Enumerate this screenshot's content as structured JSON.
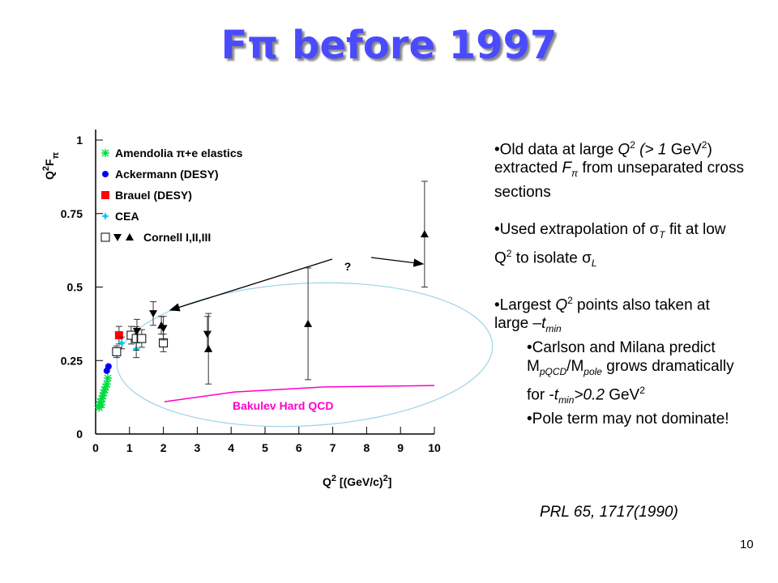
{
  "title": [
    {
      "t": "F"
    },
    {
      "t": "π"
    },
    {
      "t": " before 1997"
    }
  ],
  "chart_data": {
    "type": "scatter",
    "xlim": [
      0,
      10
    ],
    "ylim": [
      0,
      1
    ],
    "xticks": [
      0,
      1,
      2,
      3,
      4,
      5,
      6,
      7,
      8,
      9,
      10
    ],
    "yticks": [
      0,
      0.25,
      0.5,
      0.75,
      1
    ],
    "y_label": [
      {
        "t": "Q"
      },
      {
        "t": "2",
        "s": "sup"
      },
      {
        "t": "F"
      },
      {
        "t": "π",
        "s": "sub"
      }
    ],
    "x_label": [
      {
        "t": "Q"
      },
      {
        "t": "2",
        "s": "sup"
      },
      {
        "t": "  [(GeV/c)"
      },
      {
        "t": "2",
        "s": "sup"
      },
      {
        "t": "]"
      }
    ],
    "annotation": "?",
    "series": [
      {
        "name": "Amendolia π+e elastics",
        "color": "#00dd44",
        "groups": [
          {
            "marker": "asterisk",
            "x": [
              0.1,
              0.12,
              0.14,
              0.17,
              0.19,
              0.21,
              0.24,
              0.27,
              0.3,
              0.33,
              0.36
            ],
            "y": [
              0.09,
              0.1,
              0.11,
              0.1,
              0.12,
              0.13,
              0.14,
              0.15,
              0.16,
              0.17,
              0.19
            ]
          }
        ]
      },
      {
        "name": "Ackermann (DESY)",
        "color": "#0000ff",
        "groups": [
          {
            "marker": "circle",
            "x": [
              0.33,
              0.38
            ],
            "y": [
              0.215,
              0.23
            ]
          }
        ]
      },
      {
        "name": "Brauel (DESY)",
        "color": "#ff0000",
        "groups": [
          {
            "marker": "square",
            "x": [
              0.69
            ],
            "y": [
              0.336
            ],
            "errors": [
              0.03
            ]
          }
        ]
      },
      {
        "name": "CEA",
        "color": "#00ccff",
        "groups": [
          {
            "marker": "star",
            "x": [
              0.77,
              1.2
            ],
            "y": [
              0.31,
              0.29
            ],
            "errors": [
              0.02,
              0.03
            ]
          }
        ]
      },
      {
        "name": "Cornell I,II,III",
        "color": "#000000",
        "groups": [
          {
            "marker": "open-square",
            "x": [
              0.62,
              1.05,
              1.2,
              1.36,
              2.0
            ],
            "y": [
              0.28,
              0.336,
              0.325,
              0.325,
              0.31
            ],
            "errors": [
              0.02,
              0.03,
              0.04,
              0.03,
              0.03
            ]
          },
          {
            "marker": "down-triangle",
            "x": [
              1.22,
              1.7,
              2.0,
              3.3
            ],
            "y": [
              0.35,
              0.41,
              0.36,
              0.34
            ],
            "errors": [
              0.04,
              0.04,
              0.04,
              0.06
            ]
          },
          {
            "marker": "up-triangle",
            "x": [
              1.94,
              3.33,
              6.27,
              9.71
            ],
            "y": [
              0.37,
              0.29,
              0.375,
              0.68
            ],
            "errors": [
              0.03,
              0.12,
              0.19,
              0.18
            ]
          }
        ]
      }
    ],
    "curve": {
      "name": "Bakulev Hard QCD",
      "color": "#ff00cc",
      "x": [
        2.03,
        4.1,
        6.75,
        10
      ],
      "y": [
        0.11,
        0.143,
        0.16,
        0.165
      ]
    }
  },
  "bullets": [
    {
      "level": 1,
      "parts": [
        {
          "t": "•Old data at large "
        },
        {
          "t": "Q",
          "s": "i"
        },
        {
          "t": "2",
          "s": "sup"
        },
        {
          "t": " (> 1",
          "s": "i"
        },
        {
          "t": " GeV"
        },
        {
          "t": "2",
          "s": "sup"
        },
        {
          "t": ") extracted "
        },
        {
          "t": "F",
          "s": "i"
        },
        {
          "t": "π",
          "s": "sub"
        },
        {
          "t": " from unseparated cross sections"
        }
      ]
    },
    {
      "level": 1,
      "parts": [
        {
          "t": "•Used extrapolation of "
        },
        {
          "t": "σ"
        },
        {
          "t": "T",
          "s": "sub"
        },
        {
          "t": " fit at low Q"
        },
        {
          "t": "2",
          "s": "sup"
        },
        {
          "t": " to isolate "
        },
        {
          "t": "σ"
        },
        {
          "t": "L",
          "s": "sub"
        }
      ]
    },
    {
      "level": 1,
      "parts": [
        {
          "t": "•Largest "
        },
        {
          "t": "Q",
          "s": "i"
        },
        {
          "t": "2",
          "s": "sup"
        },
        {
          "t": " points also taken at large –"
        },
        {
          "t": "t",
          "s": "i"
        },
        {
          "t": "min",
          "s": "sub"
        }
      ]
    },
    {
      "level": 2,
      "parts": [
        {
          "t": "•Carlson and Milana predict M"
        },
        {
          "t": "pQCD",
          "s": "sub"
        },
        {
          "t": "/M"
        },
        {
          "t": "pole",
          "s": "sub"
        },
        {
          "t": " grows dramatically for -"
        },
        {
          "t": "t",
          "s": "i"
        },
        {
          "t": "min",
          "s": "sub"
        },
        {
          "t": ">0.2",
          "s": "i"
        },
        {
          "t": " GeV"
        },
        {
          "t": "2",
          "s": "sup"
        }
      ]
    },
    {
      "level": 2,
      "parts": [
        {
          "t": "•Pole term may not dominate!"
        }
      ]
    }
  ],
  "reference": "PRL 65, 1717(1990)",
  "page_number": "10"
}
